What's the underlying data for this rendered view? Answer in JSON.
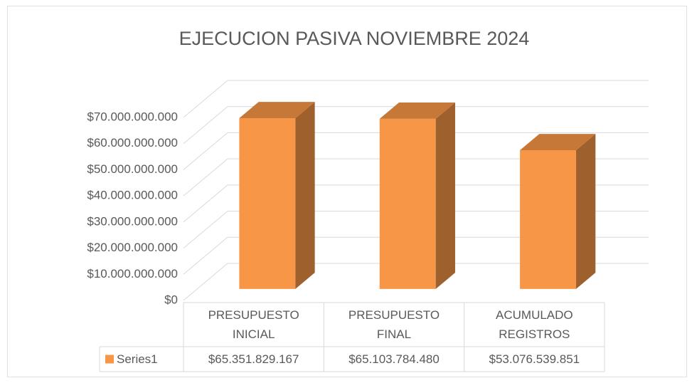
{
  "chart_data": {
    "type": "bar3d",
    "title": "EJECUCION PASIVA NOVIEMBRE 2024",
    "categories": [
      "PRESUPUESTO INICIAL",
      "PRESUPUESTO FINAL",
      "ACUMULADO REGISTROS"
    ],
    "series": [
      {
        "name": "Series1",
        "color": "#f79646",
        "values": [
          65351829167,
          65103784480,
          53076539851
        ],
        "value_labels": [
          "$65.351.829.167",
          "$65.103.784.480",
          "$53.076.539.851"
        ]
      }
    ],
    "ylim": [
      0,
      70000000000
    ],
    "yticks": [
      {
        "value": 0,
        "label": "$0"
      },
      {
        "value": 10000000000,
        "label": "$10.000.000.000"
      },
      {
        "value": 20000000000,
        "label": "$20.000.000.000"
      },
      {
        "value": 30000000000,
        "label": "$30.000.000.000"
      },
      {
        "value": 40000000000,
        "label": "$40.000.000.000"
      },
      {
        "value": 50000000000,
        "label": "$50.000.000.000"
      },
      {
        "value": 60000000000,
        "label": "$60.000.000.000"
      },
      {
        "value": 70000000000,
        "label": "$70.000.000.000"
      }
    ],
    "grid": true,
    "data_table": true
  }
}
